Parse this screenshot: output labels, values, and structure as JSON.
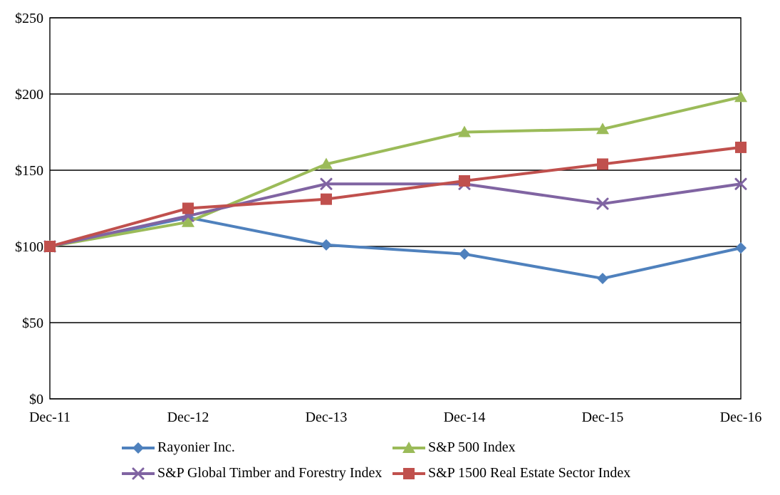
{
  "chart_data": {
    "type": "line",
    "categories": [
      "Dec-11",
      "Dec-12",
      "Dec-13",
      "Dec-14",
      "Dec-15",
      "Dec-16"
    ],
    "y_ticks": [
      0,
      50,
      100,
      150,
      200,
      250
    ],
    "y_tick_labels": [
      "$0",
      "$50",
      "$100",
      "$150",
      "$200",
      "$250"
    ],
    "ylim": [
      0,
      250
    ],
    "grid": "horizontal",
    "legend_position": "bottom",
    "axis_color": "#000000",
    "background_color": "#ffffff",
    "series": [
      {
        "name": "Rayonier Inc.",
        "color": "#4F81BD",
        "marker": "diamond",
        "values": [
          100,
          119,
          101,
          95,
          79,
          99
        ]
      },
      {
        "name": "S&P 500 Index",
        "color": "#9BBB59",
        "marker": "triangle",
        "values": [
          100,
          116,
          154,
          175,
          177,
          198
        ]
      },
      {
        "name": "S&P Global Timber and Forestry Index",
        "color": "#8064A2",
        "marker": "x",
        "values": [
          100,
          120,
          141,
          141,
          128,
          141
        ]
      },
      {
        "name": "S&P 1500 Real Estate Sector Index",
        "color": "#C0504D",
        "marker": "square",
        "values": [
          100,
          125,
          131,
          143,
          154,
          165
        ]
      }
    ]
  }
}
